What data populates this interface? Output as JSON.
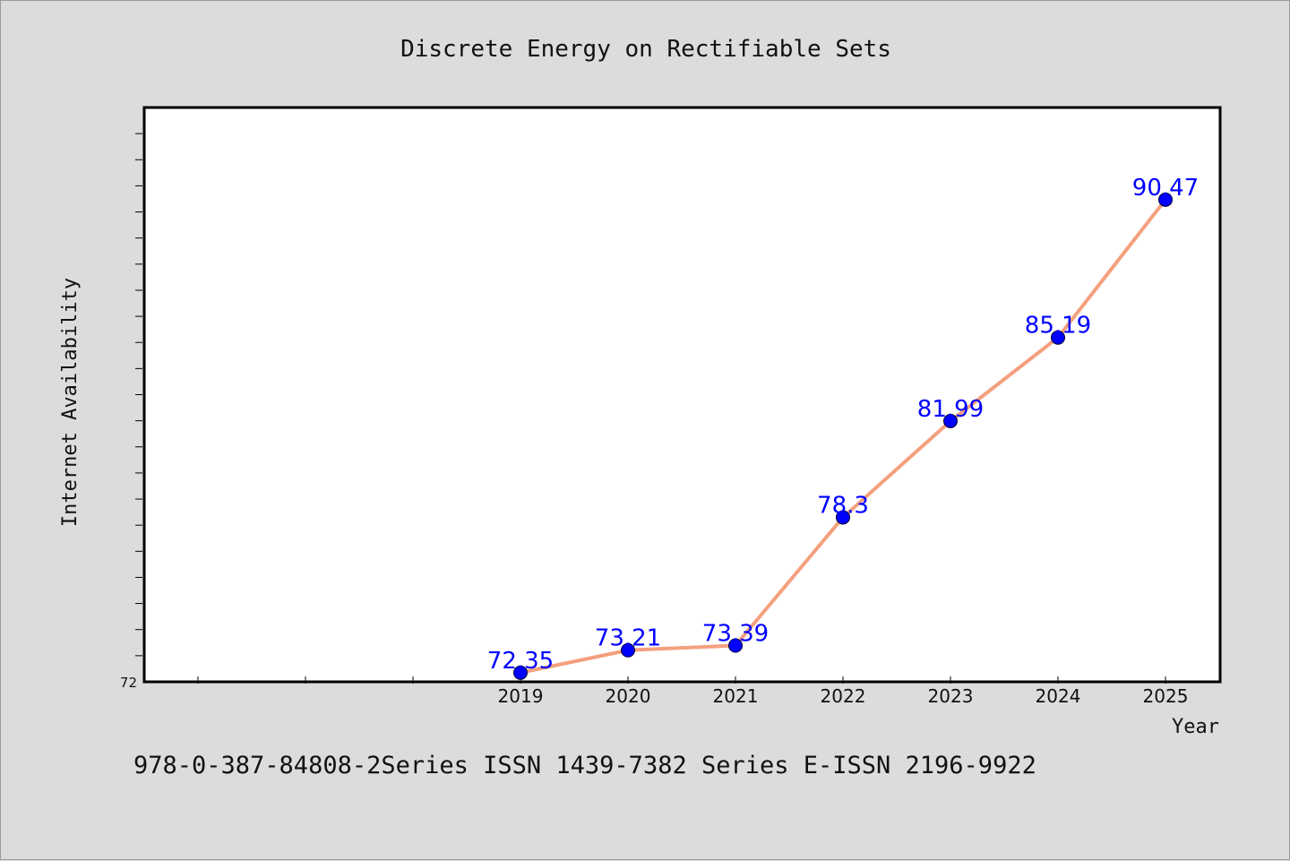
{
  "chart_data": {
    "type": "line",
    "title": "Discrete Energy on Rectifiable Sets",
    "xlabel": "Year",
    "ylabel": "Internet Availability",
    "x": [
      "2019",
      "2020",
      "2021",
      "2022",
      "2023",
      "2024",
      "2025"
    ],
    "series": [
      {
        "values": [
          72.35,
          73.21,
          73.39,
          78.3,
          81.99,
          85.19,
          90.47
        ]
      }
    ],
    "data_labels": [
      "72.35",
      "73.21",
      "73.39",
      "78.3",
      "81.99",
      "85.19",
      "90.47"
    ],
    "y_tick_labels": [
      "72"
    ],
    "ylim": [
      72,
      94
    ],
    "grid": false,
    "legend": "none",
    "line_color": "#f4a07e",
    "marker_color": "#0000ff",
    "label_color": "#0000ff"
  },
  "caption": "978-0-387-84808-2Series ISSN 1439-7382 Series E-ISSN 2196-9922"
}
